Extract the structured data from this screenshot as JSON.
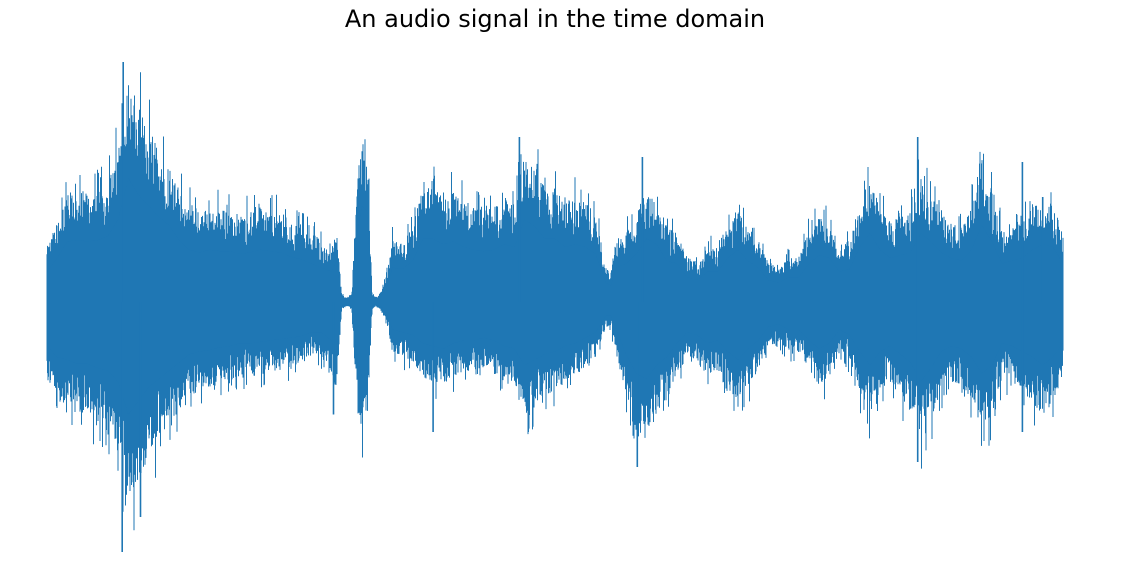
{
  "chart_data": {
    "type": "line",
    "title": "An audio signal in the time domain",
    "xlabel": "",
    "ylabel": "",
    "axes_visible": false,
    "grid": false,
    "legend": "none",
    "x_range": [
      0,
      1
    ],
    "y_range": [
      -1,
      1
    ],
    "series": [
      {
        "color": "#1f77b4",
        "envelope": {
          "x": [
            0.0,
            0.01,
            0.02,
            0.03,
            0.04,
            0.05,
            0.06,
            0.07,
            0.08,
            0.09,
            0.1,
            0.11,
            0.12,
            0.13,
            0.14,
            0.15,
            0.16,
            0.17,
            0.18,
            0.19,
            0.2,
            0.21,
            0.22,
            0.23,
            0.24,
            0.25,
            0.26,
            0.27,
            0.28,
            0.285,
            0.29,
            0.295,
            0.3,
            0.305,
            0.31,
            0.315,
            0.32,
            0.325,
            0.33,
            0.335,
            0.34,
            0.35,
            0.36,
            0.37,
            0.38,
            0.39,
            0.4,
            0.41,
            0.42,
            0.43,
            0.44,
            0.45,
            0.46,
            0.47,
            0.48,
            0.49,
            0.5,
            0.51,
            0.52,
            0.53,
            0.54,
            0.55,
            0.555,
            0.56,
            0.57,
            0.58,
            0.59,
            0.6,
            0.61,
            0.62,
            0.63,
            0.64,
            0.65,
            0.66,
            0.67,
            0.68,
            0.69,
            0.7,
            0.71,
            0.72,
            0.73,
            0.74,
            0.75,
            0.76,
            0.77,
            0.78,
            0.79,
            0.8,
            0.81,
            0.82,
            0.83,
            0.84,
            0.85,
            0.86,
            0.87,
            0.88,
            0.89,
            0.9,
            0.91,
            0.92,
            0.93,
            0.94,
            0.95,
            0.96,
            0.97,
            0.98,
            0.99,
            1.0
          ],
          "upper": [
            0.22,
            0.32,
            0.44,
            0.45,
            0.44,
            0.45,
            0.48,
            0.6,
            0.9,
            0.78,
            0.7,
            0.62,
            0.56,
            0.45,
            0.38,
            0.36,
            0.38,
            0.37,
            0.37,
            0.35,
            0.36,
            0.38,
            0.37,
            0.36,
            0.33,
            0.31,
            0.28,
            0.25,
            0.22,
            0.3,
            0.03,
            0.02,
            0.03,
            0.48,
            0.7,
            0.66,
            0.03,
            0.02,
            0.05,
            0.12,
            0.25,
            0.24,
            0.3,
            0.46,
            0.46,
            0.42,
            0.44,
            0.4,
            0.38,
            0.37,
            0.38,
            0.42,
            0.4,
            0.6,
            0.55,
            0.46,
            0.46,
            0.4,
            0.42,
            0.4,
            0.35,
            0.14,
            0.12,
            0.25,
            0.28,
            0.35,
            0.46,
            0.42,
            0.3,
            0.28,
            0.18,
            0.16,
            0.22,
            0.22,
            0.32,
            0.38,
            0.3,
            0.25,
            0.16,
            0.14,
            0.18,
            0.18,
            0.28,
            0.34,
            0.32,
            0.22,
            0.24,
            0.4,
            0.5,
            0.38,
            0.32,
            0.34,
            0.36,
            0.5,
            0.44,
            0.36,
            0.32,
            0.3,
            0.38,
            0.56,
            0.44,
            0.28,
            0.3,
            0.32,
            0.38,
            0.42,
            0.4,
            0.28
          ],
          "lower": [
            -0.32,
            -0.4,
            -0.42,
            -0.45,
            -0.45,
            -0.48,
            -0.5,
            -0.58,
            -0.82,
            -0.72,
            -0.62,
            -0.56,
            -0.5,
            -0.44,
            -0.38,
            -0.36,
            -0.35,
            -0.33,
            -0.32,
            -0.3,
            -0.3,
            -0.29,
            -0.28,
            -0.27,
            -0.26,
            -0.25,
            -0.22,
            -0.22,
            -0.28,
            -0.38,
            -0.03,
            -0.02,
            -0.03,
            -0.4,
            -0.55,
            -0.52,
            -0.03,
            -0.02,
            -0.04,
            -0.1,
            -0.2,
            -0.22,
            -0.24,
            -0.3,
            -0.32,
            -0.34,
            -0.3,
            -0.28,
            -0.28,
            -0.26,
            -0.28,
            -0.32,
            -0.34,
            -0.46,
            -0.42,
            -0.38,
            -0.36,
            -0.32,
            -0.3,
            -0.26,
            -0.22,
            -0.1,
            -0.1,
            -0.2,
            -0.38,
            -0.52,
            -0.56,
            -0.46,
            -0.4,
            -0.3,
            -0.22,
            -0.24,
            -0.3,
            -0.28,
            -0.36,
            -0.42,
            -0.34,
            -0.28,
            -0.18,
            -0.16,
            -0.2,
            -0.2,
            -0.28,
            -0.34,
            -0.3,
            -0.2,
            -0.24,
            -0.36,
            -0.46,
            -0.36,
            -0.32,
            -0.38,
            -0.44,
            -0.58,
            -0.48,
            -0.36,
            -0.32,
            -0.34,
            -0.4,
            -0.52,
            -0.46,
            -0.3,
            -0.32,
            -0.36,
            -0.4,
            -0.46,
            -0.4,
            -0.3
          ]
        },
        "peaks": [
          {
            "x": 0.075,
            "y": 0.96
          },
          {
            "x": 0.074,
            "y": -1.0
          },
          {
            "x": 0.092,
            "y": -0.86
          },
          {
            "x": 0.282,
            "y": -0.45
          },
          {
            "x": 0.38,
            "y": -0.52
          },
          {
            "x": 0.465,
            "y": 0.66
          },
          {
            "x": 0.581,
            "y": -0.66
          },
          {
            "x": 0.586,
            "y": 0.58
          },
          {
            "x": 0.857,
            "y": -0.64
          },
          {
            "x": 0.857,
            "y": 0.66
          },
          {
            "x": 0.96,
            "y": 0.56
          },
          {
            "x": 0.96,
            "y": -0.52
          },
          {
            "x": 0.98,
            "y": 0.42
          }
        ]
      }
    ]
  }
}
